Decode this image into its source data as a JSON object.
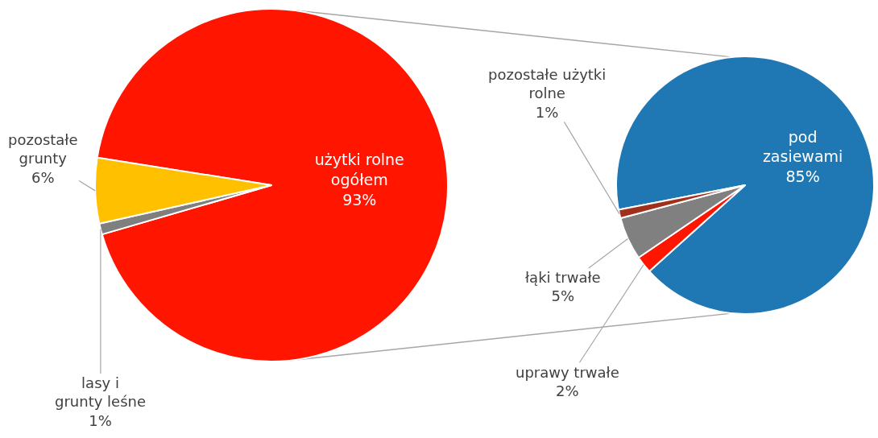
{
  "chart_data": [
    {
      "type": "pie",
      "categories": [
        "użytki rolne ogółem",
        "lasy i grunty leśne",
        "pozostałe grunty"
      ],
      "values": [
        93,
        1,
        6
      ],
      "value_labels": [
        "93%",
        "1%",
        "6%"
      ],
      "colors": [
        "#ff1500",
        "#7f7f7f",
        "#ffc000"
      ]
    },
    {
      "type": "pie",
      "categories": [
        "pod zasiewami",
        "uprawy trwałe",
        "łąki trwałe",
        "pozostałe użytki rolne"
      ],
      "values": [
        85,
        2,
        5,
        1
      ],
      "value_labels": [
        "85%",
        "2%",
        "5%",
        "1%"
      ],
      "colors": [
        "#1f77b4",
        "#ff1500",
        "#808080",
        "#a0301c"
      ]
    }
  ]
}
